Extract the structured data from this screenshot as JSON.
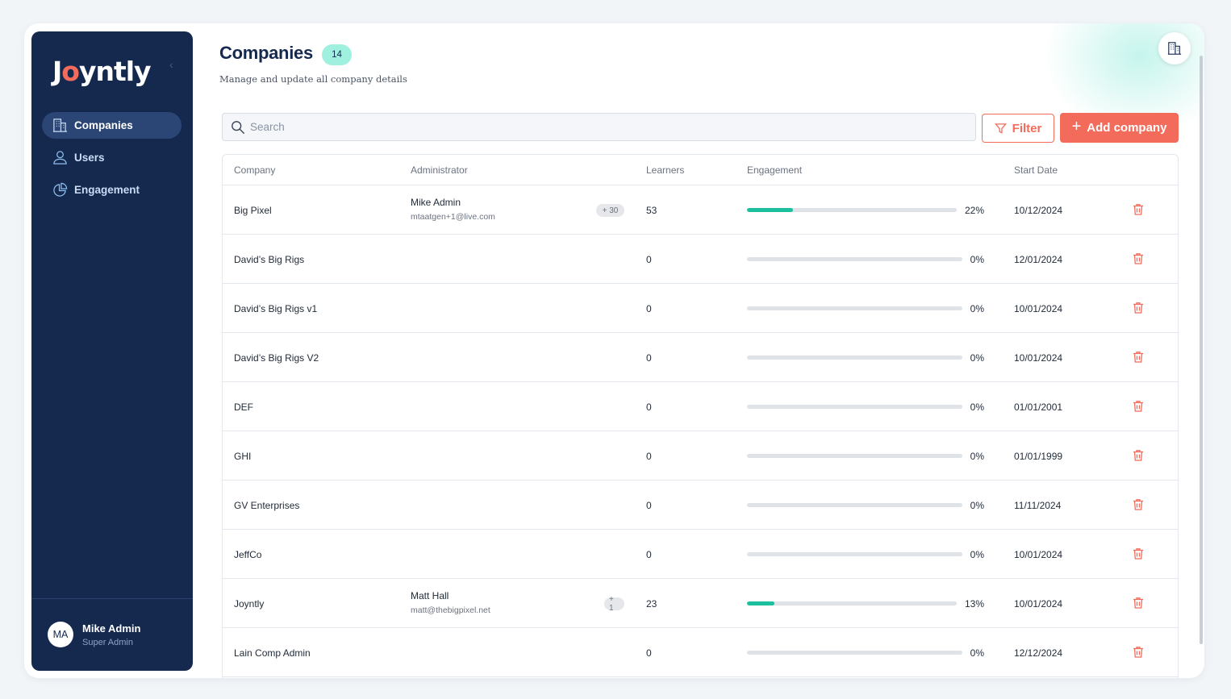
{
  "app": {
    "logo_text_1": "J",
    "logo_text_o": "o",
    "logo_text_2": "yntly",
    "collapse_icon": "chevron-left-icon"
  },
  "sidebar": {
    "items": [
      {
        "label": "Companies",
        "icon": "building-icon",
        "active": true
      },
      {
        "label": "Users",
        "icon": "user-icon",
        "active": false
      },
      {
        "label": "Engagement",
        "icon": "pie-chart-icon",
        "active": false
      }
    ],
    "user": {
      "initials": "MA",
      "name": "Mike Admin",
      "role": "Super Admin"
    }
  },
  "header": {
    "title": "Companies",
    "count": "14",
    "subtitle": "Manage and update all company details",
    "corner_icon": "building-icon"
  },
  "toolbar": {
    "search_placeholder": "Search",
    "filter_label": "Filter",
    "add_label": "Add company",
    "add_symbol": "+"
  },
  "colors": {
    "primary": "#15294f",
    "accent": "#f26b5b",
    "progress": "#1cbf9e",
    "badge": "#9ff0df"
  },
  "table": {
    "columns": [
      "Company",
      "Administrator",
      "Learners",
      "Engagement",
      "Start Date"
    ],
    "rows": [
      {
        "company": "Big Pixel",
        "admin_name": "Mike Admin",
        "admin_email": "mtaatgen+1@live.com",
        "admin_more": "+ 30",
        "learners": "53",
        "engagement": 22,
        "engagement_label": "22%",
        "start_date": "10/12/2024"
      },
      {
        "company": "David’s Big Rigs",
        "admin_name": "",
        "admin_email": "",
        "admin_more": "",
        "learners": "0",
        "engagement": 0,
        "engagement_label": "0%",
        "start_date": "12/01/2024"
      },
      {
        "company": "David’s Big Rigs v1",
        "admin_name": "",
        "admin_email": "",
        "admin_more": "",
        "learners": "0",
        "engagement": 0,
        "engagement_label": "0%",
        "start_date": "10/01/2024"
      },
      {
        "company": "David’s Big Rigs V2",
        "admin_name": "",
        "admin_email": "",
        "admin_more": "",
        "learners": "0",
        "engagement": 0,
        "engagement_label": "0%",
        "start_date": "10/01/2024"
      },
      {
        "company": "DEF",
        "admin_name": "",
        "admin_email": "",
        "admin_more": "",
        "learners": "0",
        "engagement": 0,
        "engagement_label": "0%",
        "start_date": "01/01/2001"
      },
      {
        "company": "GHI",
        "admin_name": "",
        "admin_email": "",
        "admin_more": "",
        "learners": "0",
        "engagement": 0,
        "engagement_label": "0%",
        "start_date": "01/01/1999"
      },
      {
        "company": "GV Enterprises",
        "admin_name": "",
        "admin_email": "",
        "admin_more": "",
        "learners": "0",
        "engagement": 0,
        "engagement_label": "0%",
        "start_date": "11/11/2024"
      },
      {
        "company": "JeffCo",
        "admin_name": "",
        "admin_email": "",
        "admin_more": "",
        "learners": "0",
        "engagement": 0,
        "engagement_label": "0%",
        "start_date": "10/01/2024"
      },
      {
        "company": "Joyntly",
        "admin_name": "Matt Hall",
        "admin_email": "matt@thebigpixel.net",
        "admin_more": "+ 1",
        "learners": "23",
        "engagement": 13,
        "engagement_label": "13%",
        "start_date": "10/01/2024"
      },
      {
        "company": "Lain Comp Admin",
        "admin_name": "",
        "admin_email": "",
        "admin_more": "",
        "learners": "0",
        "engagement": 0,
        "engagement_label": "0%",
        "start_date": "12/12/2024"
      }
    ]
  }
}
